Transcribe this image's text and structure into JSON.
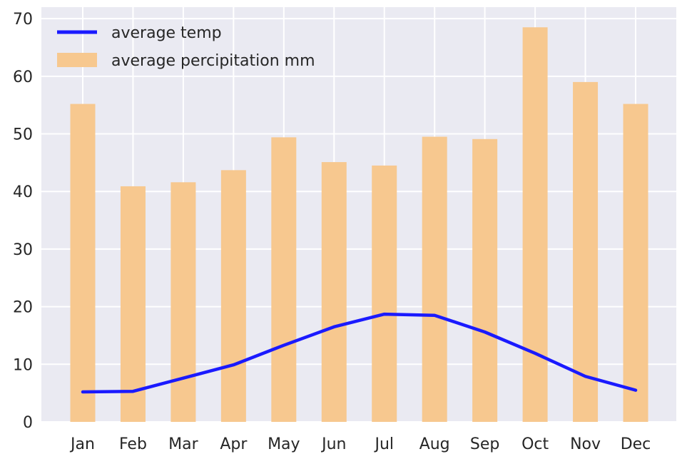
{
  "chart_data": {
    "type": "bar",
    "title": "",
    "xlabel": "",
    "ylabel": "",
    "ylim": [
      0,
      72
    ],
    "yticks": [
      0,
      10,
      20,
      30,
      40,
      50,
      60,
      70
    ],
    "grid": true,
    "legend_position": "top-left",
    "categories": [
      "Jan",
      "Feb",
      "Mar",
      "Apr",
      "May",
      "Jun",
      "Jul",
      "Aug",
      "Sep",
      "Oct",
      "Nov",
      "Dec"
    ],
    "series": [
      {
        "name": "average percipitation mm",
        "type": "bar",
        "color": "#f7c88f",
        "values": [
          55.2,
          40.9,
          41.6,
          43.7,
          49.4,
          45.1,
          44.5,
          49.5,
          49.1,
          68.5,
          59.0,
          55.2
        ]
      },
      {
        "name": "average temp",
        "type": "line",
        "color": "#1a1aff",
        "values": [
          5.2,
          5.3,
          7.6,
          9.9,
          13.3,
          16.5,
          18.7,
          18.5,
          15.6,
          11.9,
          7.9,
          5.5
        ]
      }
    ],
    "legend": [
      "average temp",
      "average percipitation mm"
    ],
    "background_color": "#eaeaf2",
    "grid_color": "#ffffff"
  }
}
